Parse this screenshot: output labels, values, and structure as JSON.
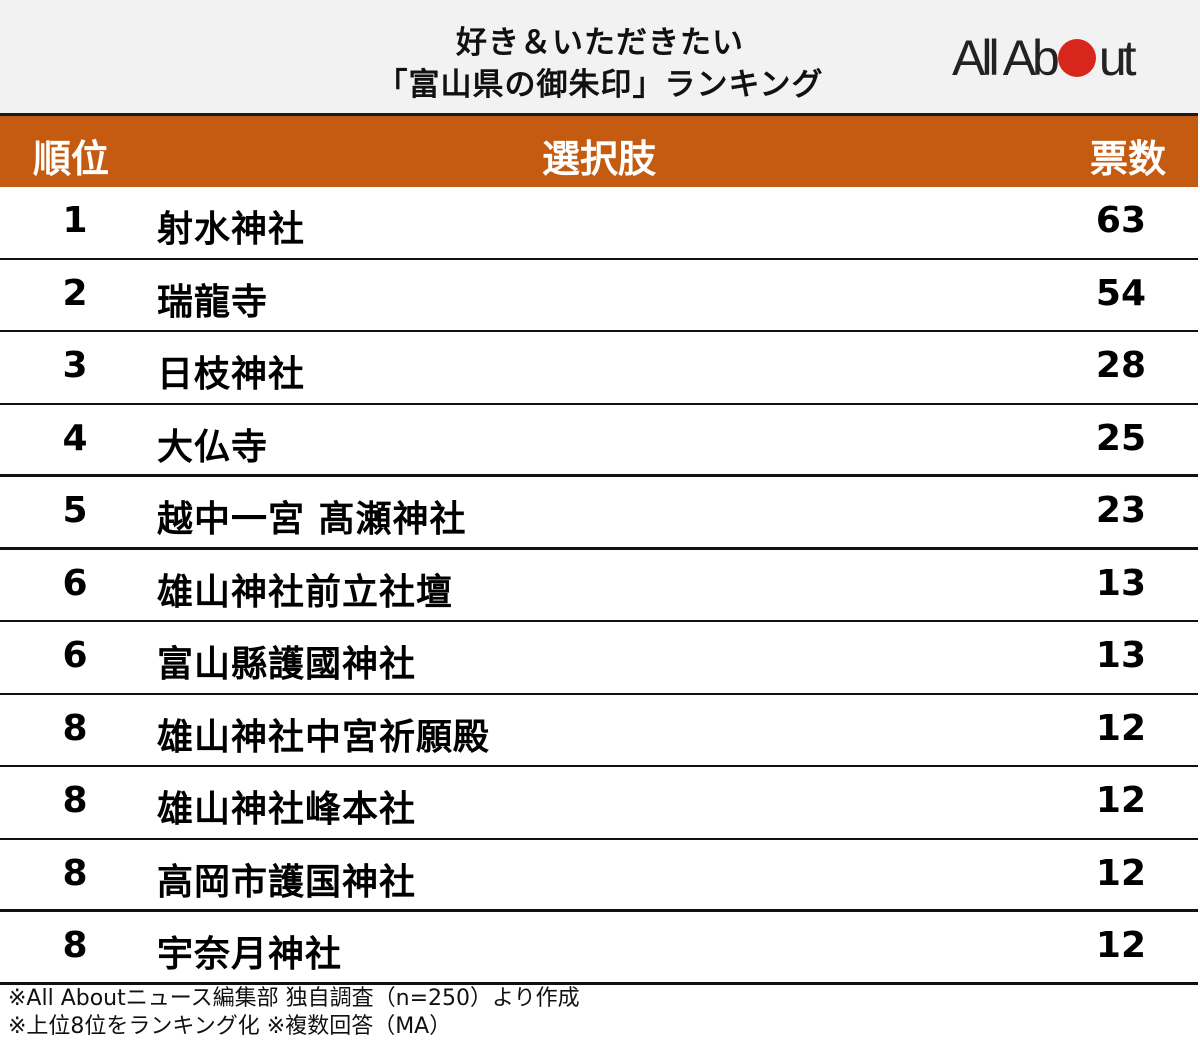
{
  "header": {
    "title_line1": "好き＆いただきたい",
    "title_line2": "「富山県の御朱印」ランキング",
    "logo": {
      "text_before": "All Ab",
      "text_after": "ut",
      "dot_color": "#d9261c"
    }
  },
  "colors": {
    "header_bg": "#c55a11",
    "title_bg": "#f2f2f2",
    "header_text": "#ffffff"
  },
  "table": {
    "columns": [
      "順位",
      "選択肢",
      "票数"
    ],
    "rows": [
      {
        "rank": "1",
        "name": "射水神社",
        "votes": "63"
      },
      {
        "rank": "2",
        "name": "瑞龍寺",
        "votes": "54"
      },
      {
        "rank": "3",
        "name": "日枝神社",
        "votes": "28"
      },
      {
        "rank": "4",
        "name": "大仏寺",
        "votes": "25"
      },
      {
        "rank": "5",
        "name": "越中一宮 髙瀬神社",
        "votes": "23"
      },
      {
        "rank": "6",
        "name": "雄山神社前立社壇",
        "votes": "13"
      },
      {
        "rank": "6",
        "name": "富山縣護國神社",
        "votes": "13"
      },
      {
        "rank": "8",
        "name": "雄山神社中宮祈願殿",
        "votes": "12"
      },
      {
        "rank": "8",
        "name": "雄山神社峰本社",
        "votes": "12"
      },
      {
        "rank": "8",
        "name": "高岡市護国神社",
        "votes": "12"
      },
      {
        "rank": "8",
        "name": "宇奈月神社",
        "votes": "12"
      }
    ]
  },
  "footnotes": {
    "line1": "※All Aboutニュース編集部 独自調査（n=250）より作成",
    "line2": "※上位8位をランキング化 ※複数回答（MA）"
  },
  "chart_data": {
    "type": "table",
    "title": "好き＆いただきたい「富山県の御朱印」ランキング",
    "columns": [
      "順位",
      "選択肢",
      "票数"
    ],
    "categories": [
      "射水神社",
      "瑞龍寺",
      "日枝神社",
      "大仏寺",
      "越中一宮 髙瀬神社",
      "雄山神社前立社壇",
      "富山縣護國神社",
      "雄山神社中宮祈願殿",
      "雄山神社峰本社",
      "高岡市護国神社",
      "宇奈月神社"
    ],
    "ranks": [
      1,
      2,
      3,
      4,
      5,
      6,
      6,
      8,
      8,
      8,
      8
    ],
    "values": [
      63,
      54,
      28,
      25,
      23,
      13,
      13,
      12,
      12,
      12,
      12
    ],
    "notes": [
      "※All Aboutニュース編集部 独自調査（n=250）より作成",
      "※上位8位をランキング化 ※複数回答（MA）"
    ]
  }
}
